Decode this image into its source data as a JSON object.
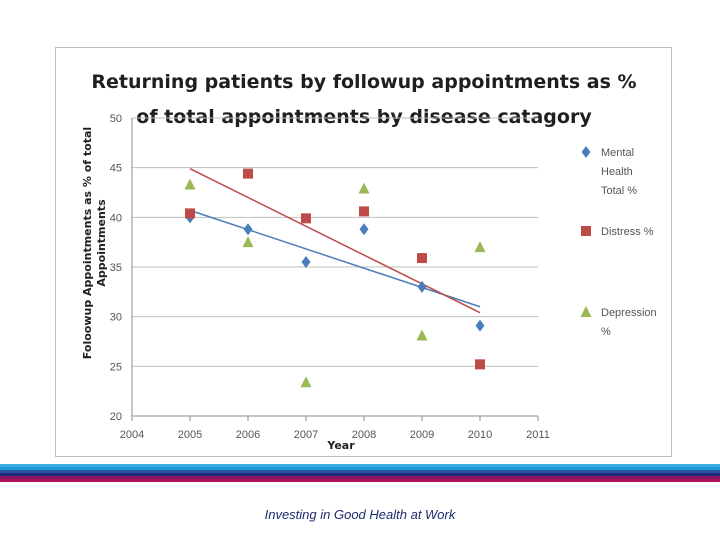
{
  "chart_data": {
    "type": "scatter",
    "title_lines": [
      "Returning patients by followup appointments as %",
      "of total appointments by disease catagory"
    ],
    "xlabel": "Year",
    "ylabel_lines": [
      "Foloowup Appointments as % of total",
      "Appointments"
    ],
    "x_ticks": [
      2004,
      2005,
      2006,
      2007,
      2008,
      2009,
      2010,
      2011
    ],
    "y_ticks": [
      20,
      25,
      30,
      35,
      40,
      45,
      50
    ],
    "xlim": [
      2004,
      2011
    ],
    "ylim": [
      20,
      50
    ],
    "grid": "horizontal",
    "legend_position": "right",
    "series": [
      {
        "name": "Mental Health Total %",
        "legend_lines": [
          "Mental",
          "Health",
          "Total %"
        ],
        "marker": "diamond",
        "color": "#4a7ebb",
        "trend_color": "#4a7ebb",
        "x": [
          2005,
          2006,
          2007,
          2008,
          2009,
          2010
        ],
        "values": [
          40.0,
          38.8,
          35.5,
          38.8,
          33.0,
          29.1
        ],
        "trendline": [
          [
            2005,
            40.7
          ],
          [
            2010,
            31.0
          ]
        ]
      },
      {
        "name": "Distress %",
        "legend_lines": [
          "Distress %"
        ],
        "marker": "square",
        "color": "#be4b48",
        "trend_color": "#be4b48",
        "x": [
          2005,
          2006,
          2007,
          2008,
          2009,
          2010
        ],
        "values": [
          40.4,
          44.4,
          39.9,
          40.6,
          35.9,
          25.2
        ],
        "trendline": [
          [
            2005,
            44.9
          ],
          [
            2010,
            30.4
          ]
        ]
      },
      {
        "name": "Depression %",
        "legend_lines": [
          "Depression",
          "%"
        ],
        "marker": "triangle",
        "color": "#98b954",
        "x": [
          2005,
          2006,
          2007,
          2008,
          2009,
          2010
        ],
        "values": [
          43.3,
          37.5,
          23.4,
          42.9,
          28.1,
          37.0
        ]
      }
    ]
  },
  "footer": {
    "text": "Investing in Good Health at Work",
    "stripe_colors": [
      "#3ab0e2",
      "#1d9ad6",
      "#2d55a4",
      "#1f2b7a",
      "#8a1766",
      "#b0105e"
    ]
  }
}
